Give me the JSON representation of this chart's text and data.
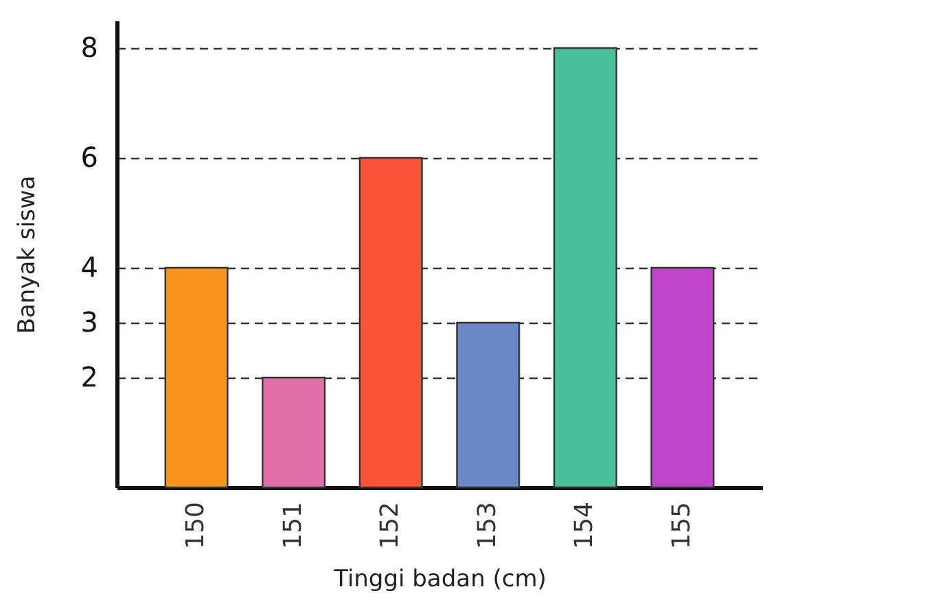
{
  "chart_data": {
    "type": "bar",
    "xlabel": "Tinggi badan (cm)",
    "ylabel": "Banyak siswa",
    "categories": [
      "150",
      "151",
      "152",
      "153",
      "154",
      "155"
    ],
    "values": [
      4,
      2,
      6,
      3,
      8,
      4
    ],
    "colors": [
      "#f7941d",
      "#e06fa8",
      "#f9533a",
      "#6a88c6",
      "#4bbf9a",
      "#bf45c9"
    ],
    "ylim": [
      0,
      8.5
    ],
    "yticks": [
      2,
      3,
      4,
      6,
      8
    ],
    "grid": "y",
    "line_style": "dashed"
  }
}
